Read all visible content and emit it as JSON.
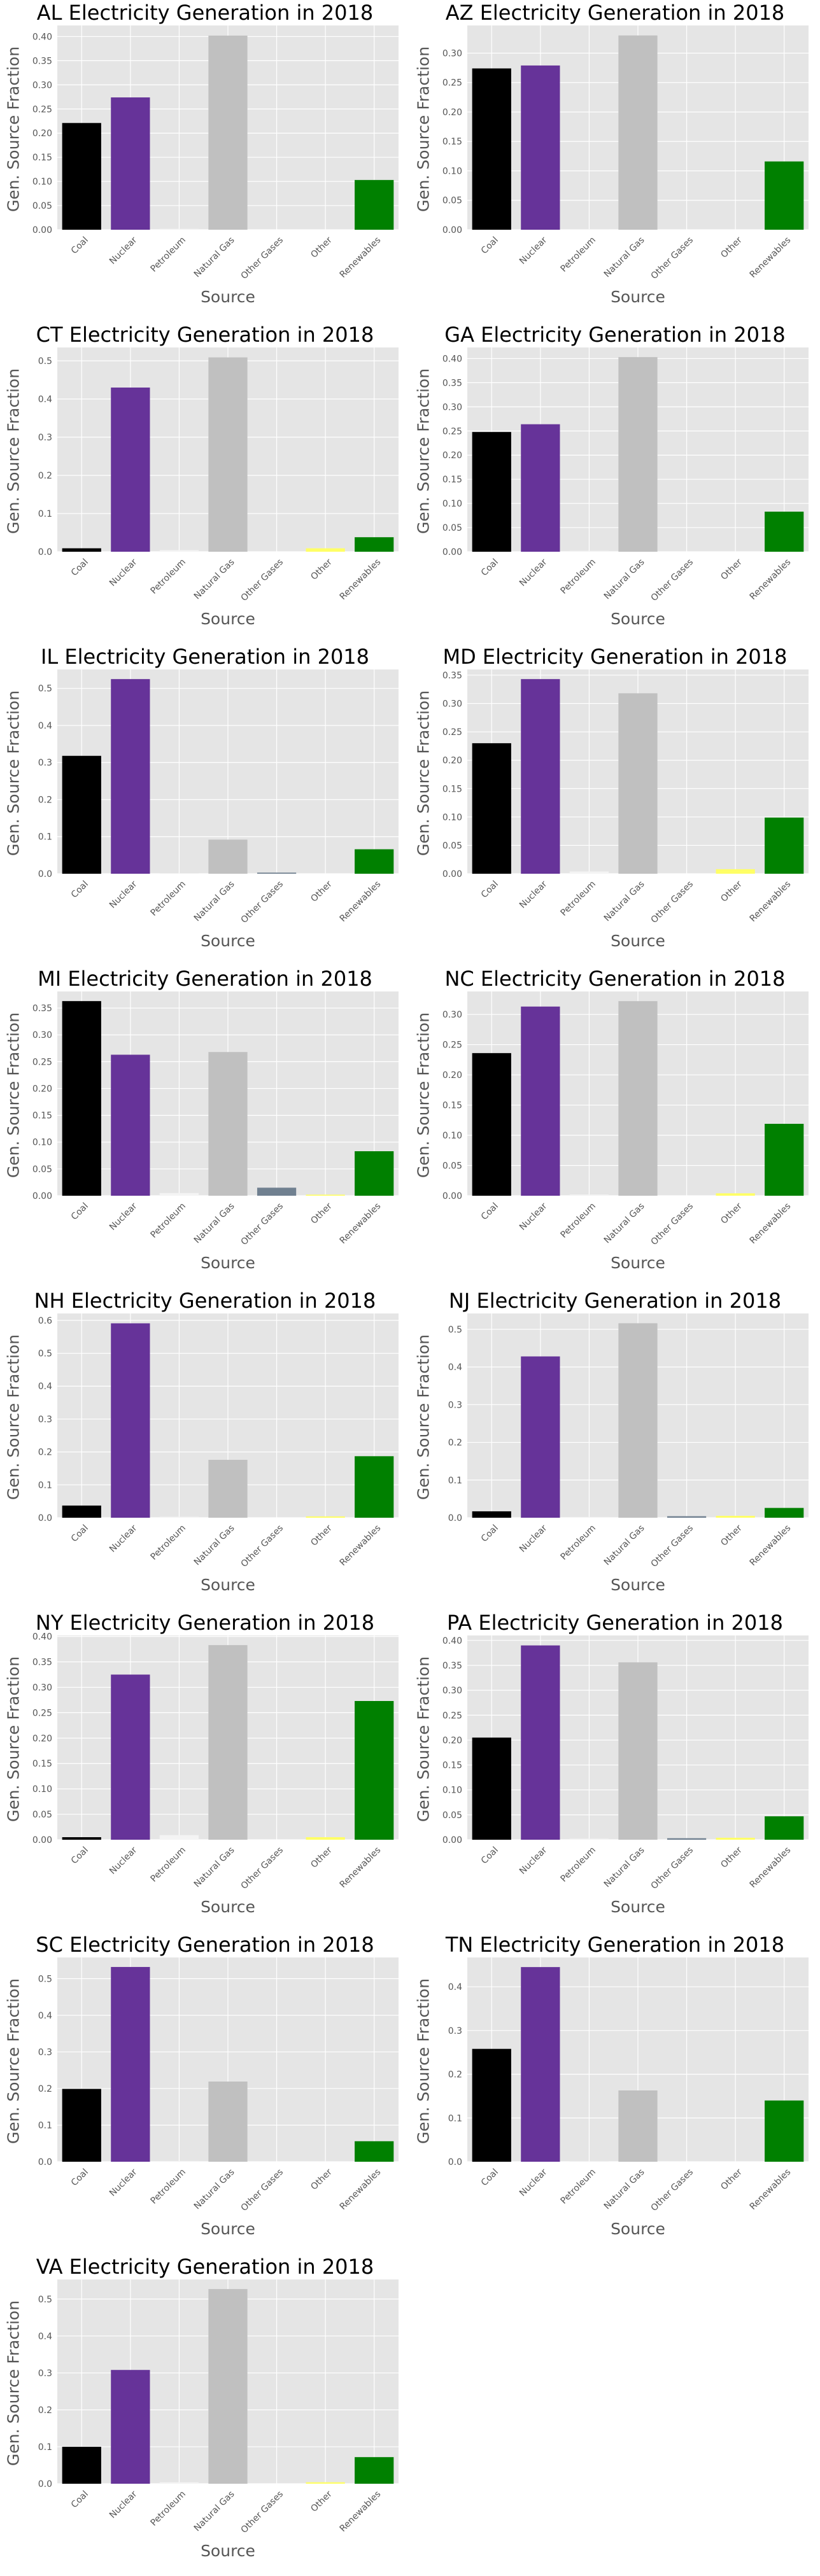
{
  "chart_data": [
    {
      "type": "bar",
      "title": "AL Electricity Generation in 2018",
      "xlabel": "Source",
      "ylabel": "Gen. Source Fraction",
      "categories": [
        "Coal",
        "Nuclear",
        "Petroleum",
        "Natural Gas",
        "Other Gases",
        "Other",
        "Renewables"
      ],
      "values": [
        0.221,
        0.274,
        0.002,
        0.402,
        0.0,
        0.0,
        0.103
      ],
      "ylim": [
        0,
        0.423
      ],
      "yticks": [
        "0.00",
        "0.05",
        "0.10",
        "0.15",
        "0.20",
        "0.25",
        "0.30",
        "0.35",
        "0.40"
      ],
      "grid": true
    },
    {
      "type": "bar",
      "title": "AZ Electricity Generation in 2018",
      "xlabel": "Source",
      "ylabel": "Gen. Source Fraction",
      "categories": [
        "Coal",
        "Nuclear",
        "Petroleum",
        "Natural Gas",
        "Other Gases",
        "Other",
        "Renewables"
      ],
      "values": [
        0.274,
        0.279,
        0.001,
        0.33,
        0.0,
        0.0,
        0.116
      ],
      "ylim": [
        0,
        0.347
      ],
      "yticks": [
        "0.00",
        "0.05",
        "0.10",
        "0.15",
        "0.20",
        "0.25",
        "0.30"
      ],
      "grid": true
    },
    {
      "type": "bar",
      "title": "CT Electricity Generation in 2018",
      "xlabel": "Source",
      "ylabel": "Gen. Source Fraction",
      "categories": [
        "Coal",
        "Nuclear",
        "Petroleum",
        "Natural Gas",
        "Other Gases",
        "Other",
        "Renewables"
      ],
      "values": [
        0.009,
        0.43,
        0.004,
        0.509,
        0.0,
        0.009,
        0.038
      ],
      "ylim": [
        0,
        0.535
      ],
      "yticks": [
        "0.0",
        "0.1",
        "0.2",
        "0.3",
        "0.4",
        "0.5"
      ],
      "grid": true
    },
    {
      "type": "bar",
      "title": "GA Electricity Generation in 2018",
      "xlabel": "Source",
      "ylabel": "Gen. Source Fraction",
      "categories": [
        "Coal",
        "Nuclear",
        "Petroleum",
        "Natural Gas",
        "Other Gases",
        "Other",
        "Renewables"
      ],
      "values": [
        0.248,
        0.264,
        0.002,
        0.403,
        0.0,
        0.0,
        0.083
      ],
      "ylim": [
        0,
        0.423
      ],
      "yticks": [
        "0.00",
        "0.05",
        "0.10",
        "0.15",
        "0.20",
        "0.25",
        "0.30",
        "0.35",
        "0.40"
      ],
      "grid": true
    },
    {
      "type": "bar",
      "title": "IL Electricity Generation in 2018",
      "xlabel": "Source",
      "ylabel": "Gen. Source Fraction",
      "categories": [
        "Coal",
        "Nuclear",
        "Petroleum",
        "Natural Gas",
        "Other Gases",
        "Other",
        "Renewables"
      ],
      "values": [
        0.318,
        0.525,
        0.001,
        0.092,
        0.003,
        0.0,
        0.066
      ],
      "ylim": [
        0,
        0.551
      ],
      "yticks": [
        "0.0",
        "0.1",
        "0.2",
        "0.3",
        "0.4",
        "0.5"
      ],
      "grid": true
    },
    {
      "type": "bar",
      "title": "MD Electricity Generation in 2018",
      "xlabel": "Source",
      "ylabel": "Gen. Source Fraction",
      "categories": [
        "Coal",
        "Nuclear",
        "Petroleum",
        "Natural Gas",
        "Other Gases",
        "Other",
        "Renewables"
      ],
      "values": [
        0.23,
        0.343,
        0.004,
        0.318,
        0.0,
        0.008,
        0.099
      ],
      "ylim": [
        0,
        0.36
      ],
      "yticks": [
        "0.00",
        "0.05",
        "0.10",
        "0.15",
        "0.20",
        "0.25",
        "0.30",
        "0.35"
      ],
      "grid": true
    },
    {
      "type": "bar",
      "title": "MI Electricity Generation in 2018",
      "xlabel": "Source",
      "ylabel": "Gen. Source Fraction",
      "categories": [
        "Coal",
        "Nuclear",
        "Petroleum",
        "Natural Gas",
        "Other Gases",
        "Other",
        "Renewables"
      ],
      "values": [
        0.363,
        0.263,
        0.005,
        0.268,
        0.015,
        0.002,
        0.083
      ],
      "ylim": [
        0,
        0.381
      ],
      "yticks": [
        "0.00",
        "0.05",
        "0.10",
        "0.15",
        "0.20",
        "0.25",
        "0.30",
        "0.35"
      ],
      "grid": true
    },
    {
      "type": "bar",
      "title": "NC Electricity Generation in 2018",
      "xlabel": "Source",
      "ylabel": "Gen. Source Fraction",
      "categories": [
        "Coal",
        "Nuclear",
        "Petroleum",
        "Natural Gas",
        "Other Gases",
        "Other",
        "Renewables"
      ],
      "values": [
        0.236,
        0.313,
        0.002,
        0.322,
        0.0,
        0.004,
        0.119
      ],
      "ylim": [
        0,
        0.338
      ],
      "yticks": [
        "0.00",
        "0.05",
        "0.10",
        "0.15",
        "0.20",
        "0.25",
        "0.30"
      ],
      "grid": true
    },
    {
      "type": "bar",
      "title": "NH Electricity Generation in 2018",
      "xlabel": "Source",
      "ylabel": "Gen. Source Fraction",
      "categories": [
        "Coal",
        "Nuclear",
        "Petroleum",
        "Natural Gas",
        "Other Gases",
        "Other",
        "Renewables"
      ],
      "values": [
        0.037,
        0.591,
        0.003,
        0.176,
        0.0,
        0.004,
        0.187
      ],
      "ylim": [
        0,
        0.621
      ],
      "yticks": [
        "0.0",
        "0.1",
        "0.2",
        "0.3",
        "0.4",
        "0.5",
        "0.6"
      ],
      "grid": true
    },
    {
      "type": "bar",
      "title": "NJ Electricity Generation in 2018",
      "xlabel": "Source",
      "ylabel": "Gen. Source Fraction",
      "categories": [
        "Coal",
        "Nuclear",
        "Petroleum",
        "Natural Gas",
        "Other Gases",
        "Other",
        "Renewables"
      ],
      "values": [
        0.017,
        0.428,
        0.002,
        0.516,
        0.004,
        0.005,
        0.026
      ],
      "ylim": [
        0,
        0.542
      ],
      "yticks": [
        "0.0",
        "0.1",
        "0.2",
        "0.3",
        "0.4",
        "0.5"
      ],
      "grid": true
    },
    {
      "type": "bar",
      "title": "NY Electricity Generation in 2018",
      "xlabel": "Source",
      "ylabel": "Gen. Source Fraction",
      "categories": [
        "Coal",
        "Nuclear",
        "Petroleum",
        "Natural Gas",
        "Other Gases",
        "Other",
        "Renewables"
      ],
      "values": [
        0.005,
        0.325,
        0.009,
        0.383,
        0.0,
        0.005,
        0.273
      ],
      "ylim": [
        0,
        0.402
      ],
      "yticks": [
        "0.00",
        "0.05",
        "0.10",
        "0.15",
        "0.20",
        "0.25",
        "0.30",
        "0.35",
        "0.40"
      ],
      "grid": true
    },
    {
      "type": "bar",
      "title": "PA Electricity Generation in 2018",
      "xlabel": "Source",
      "ylabel": "Gen. Source Fraction",
      "categories": [
        "Coal",
        "Nuclear",
        "Petroleum",
        "Natural Gas",
        "Other Gases",
        "Other",
        "Renewables"
      ],
      "values": [
        0.205,
        0.39,
        0.002,
        0.356,
        0.003,
        0.004,
        0.047
      ],
      "ylim": [
        0,
        0.41
      ],
      "yticks": [
        "0.00",
        "0.05",
        "0.10",
        "0.15",
        "0.20",
        "0.25",
        "0.30",
        "0.35",
        "0.40"
      ],
      "grid": true
    },
    {
      "type": "bar",
      "title": "SC Electricity Generation in 2018",
      "xlabel": "Source",
      "ylabel": "Gen. Source Fraction",
      "categories": [
        "Coal",
        "Nuclear",
        "Petroleum",
        "Natural Gas",
        "Other Gases",
        "Other",
        "Renewables"
      ],
      "values": [
        0.199,
        0.532,
        0.002,
        0.219,
        0.0,
        0.0,
        0.056
      ],
      "ylim": [
        0,
        0.558
      ],
      "yticks": [
        "0.0",
        "0.1",
        "0.2",
        "0.3",
        "0.4",
        "0.5"
      ],
      "grid": true
    },
    {
      "type": "bar",
      "title": "TN Electricity Generation in 2018",
      "xlabel": "Source",
      "ylabel": "Gen. Source Fraction",
      "categories": [
        "Coal",
        "Nuclear",
        "Petroleum",
        "Natural Gas",
        "Other Gases",
        "Other",
        "Renewables"
      ],
      "values": [
        0.258,
        0.445,
        0.001,
        0.163,
        0.0,
        0.0,
        0.14
      ],
      "ylim": [
        0,
        0.467
      ],
      "yticks": [
        "0.0",
        "0.1",
        "0.2",
        "0.3",
        "0.4"
      ],
      "grid": true
    },
    {
      "type": "bar",
      "title": "VA Electricity Generation in 2018",
      "xlabel": "Source",
      "ylabel": "Gen. Source Fraction",
      "categories": [
        "Coal",
        "Nuclear",
        "Petroleum",
        "Natural Gas",
        "Other Gases",
        "Other",
        "Renewables"
      ],
      "values": [
        0.1,
        0.308,
        0.004,
        0.527,
        0.0,
        0.004,
        0.072
      ],
      "ylim": [
        0,
        0.553
      ],
      "yticks": [
        "0.0",
        "0.1",
        "0.2",
        "0.3",
        "0.4",
        "0.5"
      ],
      "grid": true
    }
  ],
  "colors": {
    "Coal": "#000000",
    "Nuclear": "#663399",
    "Petroleum": "#f4f4f4",
    "Natural Gas": "#c0c0c0",
    "Other Gases": "#708090",
    "Other": "#ffff66",
    "Renewables": "#008000",
    "plot_background": "#e5e5e5",
    "grid": "#ffffff",
    "tick_label": "#555555"
  }
}
